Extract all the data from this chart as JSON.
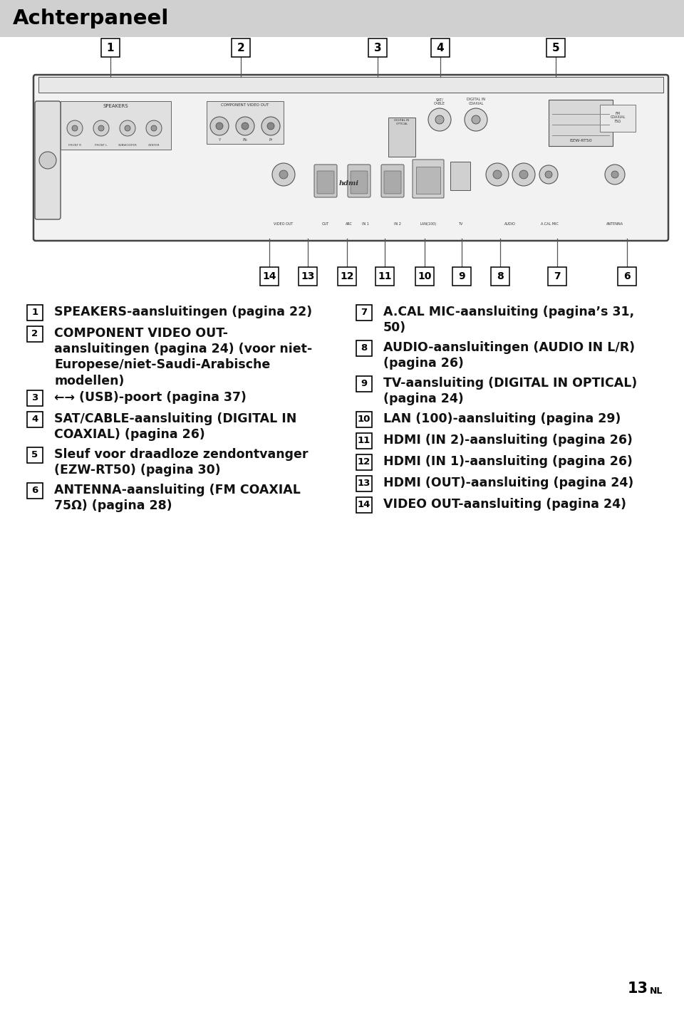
{
  "title": "Achterpaneel",
  "title_bg": "#d0d0d0",
  "title_color": "#000000",
  "page_bg": "#ffffff",
  "page_number": "13",
  "page_suffix": "NL",
  "left_items": [
    {
      "num": "1",
      "text": "SPEAKERS-aansluitingen (pagina 22)"
    },
    {
      "num": "2",
      "text": "COMPONENT VIDEO OUT-\naansluitingen (pagina 24) (voor niet-\nEuropese/niet-Saudi-Arabische\nmodellen)"
    },
    {
      "num": "3",
      "text": "←→ (USB)-poort (pagina 37)"
    },
    {
      "num": "4",
      "text": "SAT/CABLE-aansluiting (DIGITAL IN\nCOAXIAL) (pagina 26)"
    },
    {
      "num": "5",
      "text": "Sleuf voor draadloze zendontvanger\n(EZW-RT50) (pagina 30)"
    },
    {
      "num": "6",
      "text": "ANTENNA-aansluiting (FM COAXIAL\n75Ω) (pagina 28)"
    }
  ],
  "right_items": [
    {
      "num": "7",
      "text": "A.CAL MIC-aansluiting (pagina’s 31,\n50)"
    },
    {
      "num": "8",
      "text": "AUDIO-aansluitingen (AUDIO IN L/R)\n(pagina 26)"
    },
    {
      "num": "9",
      "text": "TV-aansluiting (DIGITAL IN OPTICAL)\n(pagina 24)"
    },
    {
      "num": "10",
      "text": "LAN (100)-aansluiting (pagina 29)"
    },
    {
      "num": "11",
      "text": "HDMI (IN 2)-aansluiting (pagina 26)"
    },
    {
      "num": "12",
      "text": "HDMI (IN 1)-aansluiting (pagina 26)"
    },
    {
      "num": "13",
      "text": "HDMI (OUT)-aansluiting (pagina 24)"
    },
    {
      "num": "14",
      "text": "VIDEO OUT-aansluiting (pagina 24)"
    }
  ],
  "num_top_positions": {
    "1": 155,
    "2": 338,
    "3": 530,
    "4": 618,
    "5": 780
  },
  "num_bottom_positions": {
    "14": 378,
    "13": 432,
    "12": 487,
    "11": 540,
    "10": 596,
    "9": 648,
    "8": 702,
    "7": 782,
    "6": 880
  }
}
